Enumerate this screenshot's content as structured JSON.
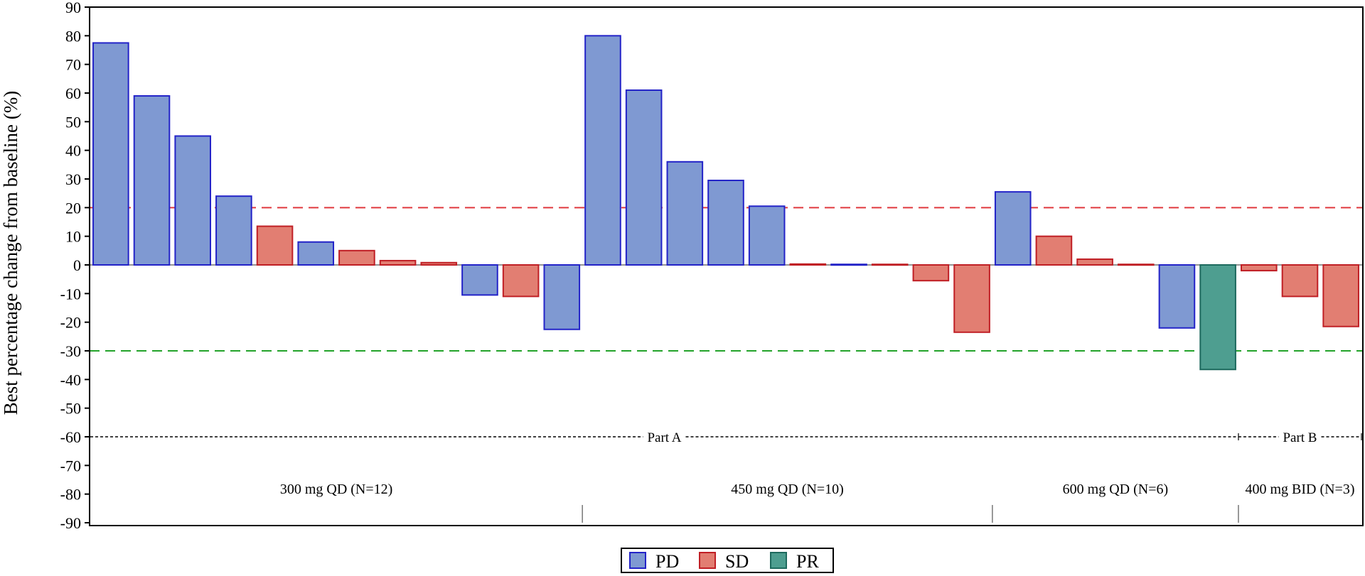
{
  "chart_data": {
    "type": "bar",
    "ylabel": "Best percentage change from baseline (%)",
    "ylim": [
      -90,
      90
    ],
    "yticks": [
      90,
      80,
      70,
      60,
      50,
      40,
      30,
      20,
      10,
      0,
      -10,
      -20,
      -30,
      -40,
      -50,
      -60,
      -70,
      -80,
      -90
    ],
    "reference_lines": [
      {
        "value": 20,
        "color": "#e0393e",
        "style": "dashed"
      },
      {
        "value": -30,
        "color": "#22a32a",
        "style": "dashed"
      }
    ],
    "legend": [
      {
        "key": "PD",
        "label": "PD",
        "fill": "#7f99d2",
        "stroke": "#2323c8"
      },
      {
        "key": "SD",
        "label": "SD",
        "fill": "#e27e72",
        "stroke": "#c01f25"
      },
      {
        "key": "PR",
        "label": "PR",
        "fill": "#4e9e90",
        "stroke": "#1e6a5e"
      }
    ],
    "legend_position": "bottom-center",
    "groups": [
      {
        "label": "300 mg QD (N=12)",
        "bars": [
          {
            "value": 77.5,
            "response": "PD"
          },
          {
            "value": 59,
            "response": "PD"
          },
          {
            "value": 45,
            "response": "PD"
          },
          {
            "value": 24,
            "response": "PD"
          },
          {
            "value": 13.5,
            "response": "SD"
          },
          {
            "value": 8,
            "response": "PD"
          },
          {
            "value": 5,
            "response": "SD"
          },
          {
            "value": 1.5,
            "response": "SD"
          },
          {
            "value": 0.8,
            "response": "SD"
          },
          {
            "value": -10.5,
            "response": "PD"
          },
          {
            "value": -11,
            "response": "SD"
          },
          {
            "value": -22.5,
            "response": "PD"
          }
        ]
      },
      {
        "label": "450 mg QD (N=10)",
        "bars": [
          {
            "value": 80,
            "response": "PD"
          },
          {
            "value": 61,
            "response": "PD"
          },
          {
            "value": 36,
            "response": "PD"
          },
          {
            "value": 29.5,
            "response": "PD"
          },
          {
            "value": 20.5,
            "response": "PD"
          },
          {
            "value": 0.3,
            "response": "SD"
          },
          {
            "value": 0.2,
            "response": "PD"
          },
          {
            "value": 0.2,
            "response": "SD"
          },
          {
            "value": -5.5,
            "response": "SD"
          },
          {
            "value": -23.5,
            "response": "SD"
          }
        ]
      },
      {
        "label": "600 mg QD (N=6)",
        "bars": [
          {
            "value": 25.5,
            "response": "PD"
          },
          {
            "value": 10,
            "response": "SD"
          },
          {
            "value": 2,
            "response": "SD"
          },
          {
            "value": 0.2,
            "response": "SD"
          },
          {
            "value": -22,
            "response": "PD"
          },
          {
            "value": -36.5,
            "response": "PR"
          }
        ]
      },
      {
        "label": "400 mg BID (N=3)",
        "bars": [
          {
            "value": -2,
            "response": "SD"
          },
          {
            "value": -11,
            "response": "SD"
          },
          {
            "value": -21.5,
            "response": "SD"
          }
        ]
      }
    ],
    "parts": [
      {
        "label": "Part A",
        "groups": [
          0,
          1,
          2
        ]
      },
      {
        "label": "Part B",
        "groups": [
          3
        ]
      }
    ]
  }
}
